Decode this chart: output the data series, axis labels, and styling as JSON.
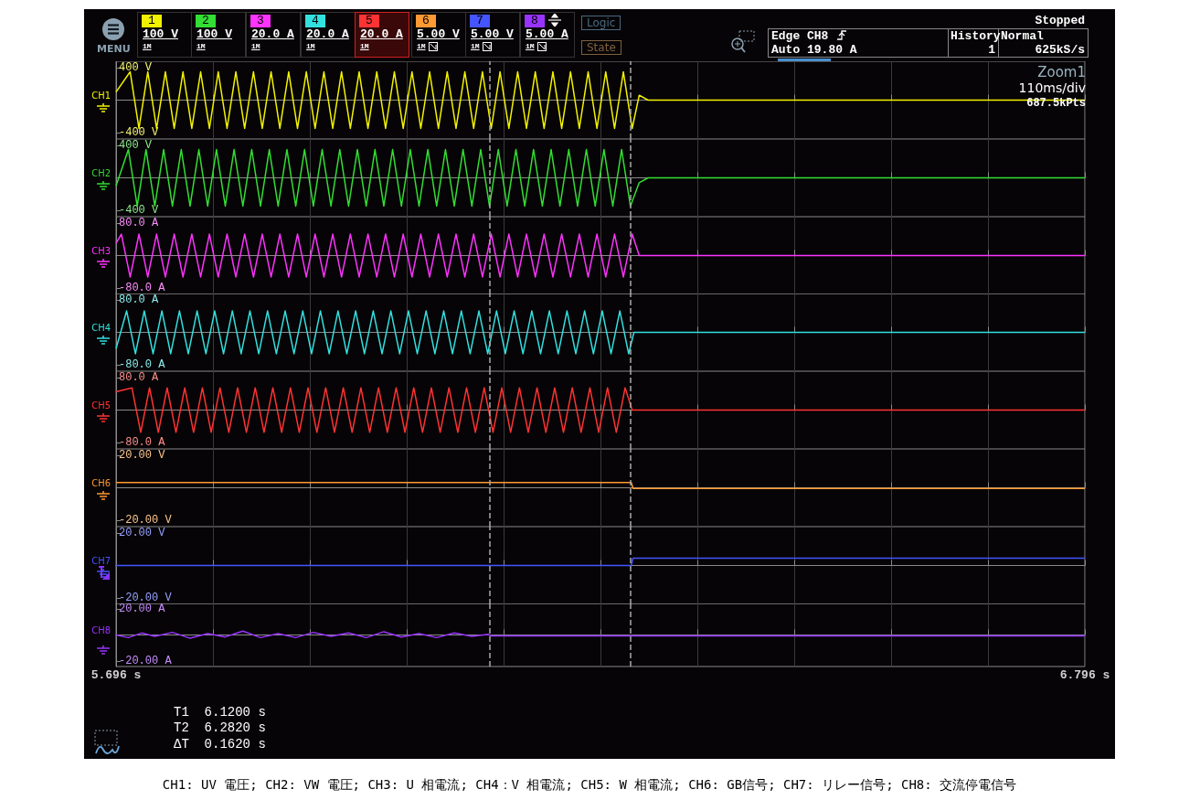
{
  "chart_data": [
    {
      "type": "line",
      "ylabel": "CH1",
      "color": "#f2f200",
      "marker": "none",
      "grid": "x",
      "tick_labels": "y",
      "xlim": [
        5.696,
        6.796
      ],
      "xticks": [
        5.696,
        5.806,
        5.916,
        6.026,
        6.136,
        6.246,
        6.356,
        6.466,
        6.576,
        6.686,
        6.796
      ],
      "ylim": [
        -480,
        480
      ],
      "yticks": [
        {
          "value": 400,
          "label": "400 V"
        },
        {
          "value": -400,
          "label": "-400 V"
        }
      ],
      "ref_lines": [
        {
          "axis": "x",
          "value": 6.12,
          "color": "#aaaaaa",
          "line_style": "dashed"
        },
        {
          "axis": "x",
          "value": 6.282,
          "color": "#aaaaaa",
          "line_style": "dashed"
        }
      ],
      "x": [
        5.696,
        5.712,
        5.722,
        5.732,
        5.742,
        5.752,
        5.762,
        5.772,
        5.782,
        5.792,
        5.802,
        5.812,
        5.822,
        5.832,
        5.842,
        5.852,
        5.862,
        5.872,
        5.882,
        5.892,
        5.902,
        5.912,
        5.922,
        5.932,
        5.942,
        5.952,
        5.962,
        5.972,
        5.982,
        5.992,
        6.002,
        6.012,
        6.022,
        6.032,
        6.042,
        6.052,
        6.062,
        6.072,
        6.082,
        6.092,
        6.102,
        6.112,
        6.122,
        6.132,
        6.142,
        6.152,
        6.162,
        6.172,
        6.182,
        6.192,
        6.202,
        6.212,
        6.222,
        6.232,
        6.242,
        6.252,
        6.262,
        6.272,
        6.282,
        6.29,
        6.3,
        6.796
      ],
      "values": [
        100,
        350,
        -350,
        350,
        -350,
        350,
        -350,
        350,
        -350,
        350,
        -350,
        350,
        -350,
        350,
        -350,
        350,
        -350,
        350,
        -350,
        350,
        -350,
        350,
        -350,
        350,
        -350,
        350,
        -350,
        350,
        -350,
        350,
        -350,
        350,
        -350,
        350,
        -350,
        350,
        -350,
        350,
        -350,
        350,
        -350,
        350,
        -350,
        350,
        -350,
        350,
        -350,
        350,
        -350,
        350,
        -350,
        350,
        -350,
        350,
        -350,
        350,
        -350,
        350,
        -350,
        60,
        0,
        0
      ],
      "annotations": [
        "MENU",
        "1",
        "100 V",
        "1M",
        "2",
        "100 V",
        "1M",
        "3",
        "20.0 A",
        "1M",
        "4",
        "20.0 A",
        "1M",
        "5",
        "20.0 A",
        "1M",
        "6",
        "5.00 V",
        "1M",
        "7",
        "5.00 V",
        "1M",
        "8",
        "5.00 A",
        "1M",
        "Logic",
        "State",
        "Edge CH8",
        "Auto 19.80 A",
        "History",
        "1",
        "Normal",
        "625kS/s",
        "Stopped",
        "Zoom1",
        "110ms/div",
        "687.5kPts"
      ]
    },
    {
      "type": "line",
      "ylabel": "CH2",
      "color": "#33dd33",
      "marker": "none",
      "grid": "x",
      "tick_labels": "y",
      "xlim": [
        5.696,
        6.796
      ],
      "xticks": [
        5.696,
        5.806,
        5.916,
        6.026,
        6.136,
        6.246,
        6.356,
        6.466,
        6.576,
        6.686,
        6.796
      ],
      "ylim": [
        -480,
        480
      ],
      "yticks": [
        {
          "value": 400,
          "label": "400 V"
        },
        {
          "value": -400,
          "label": "-400 V"
        }
      ],
      "ref_lines": [
        {
          "axis": "x",
          "value": 6.12,
          "color": "#aaaaaa",
          "line_style": "dashed"
        },
        {
          "axis": "x",
          "value": 6.282,
          "color": "#aaaaaa",
          "line_style": "dashed"
        }
      ],
      "x": [
        5.696,
        5.71,
        5.72,
        5.73,
        5.74,
        5.75,
        5.76,
        5.77,
        5.78,
        5.79,
        5.8,
        5.81,
        5.82,
        5.83,
        5.84,
        5.85,
        5.86,
        5.87,
        5.88,
        5.89,
        5.9,
        5.91,
        5.92,
        5.93,
        5.94,
        5.95,
        5.96,
        5.97,
        5.98,
        5.99,
        6.0,
        6.01,
        6.02,
        6.03,
        6.04,
        6.05,
        6.06,
        6.07,
        6.08,
        6.09,
        6.1,
        6.11,
        6.12,
        6.13,
        6.14,
        6.15,
        6.16,
        6.17,
        6.18,
        6.19,
        6.2,
        6.21,
        6.22,
        6.23,
        6.24,
        6.25,
        6.26,
        6.27,
        6.28,
        6.29,
        6.3,
        6.796
      ],
      "values": [
        -100,
        350,
        -350,
        350,
        -350,
        350,
        -350,
        350,
        -350,
        350,
        -350,
        350,
        -350,
        350,
        -350,
        350,
        -350,
        350,
        -350,
        350,
        -350,
        350,
        -350,
        350,
        -350,
        350,
        -350,
        350,
        -350,
        350,
        -350,
        350,
        -350,
        350,
        -350,
        350,
        -350,
        350,
        -350,
        350,
        -350,
        350,
        -350,
        350,
        -350,
        350,
        -350,
        350,
        -350,
        350,
        -350,
        350,
        -350,
        350,
        -350,
        350,
        -350,
        350,
        -350,
        -60,
        0,
        0
      ]
    },
    {
      "type": "line",
      "ylabel": "CH3",
      "color": "#ff33ff",
      "marker": "none",
      "grid": "x",
      "tick_labels": "y",
      "xlim": [
        5.696,
        6.796
      ],
      "xticks": [
        5.696,
        5.806,
        5.916,
        6.026,
        6.136,
        6.246,
        6.356,
        6.466,
        6.576,
        6.686,
        6.796
      ],
      "ylim": [
        -96,
        96
      ],
      "yticks": [
        {
          "value": 80,
          "label": "80.0 A"
        },
        {
          "value": -80,
          "label": "-80.0 A"
        }
      ],
      "ref_lines": [
        {
          "axis": "x",
          "value": 6.12,
          "color": "#aaaaaa",
          "line_style": "dashed"
        },
        {
          "axis": "x",
          "value": 6.282,
          "color": "#aaaaaa",
          "line_style": "dashed"
        }
      ],
      "x": [
        5.696,
        5.702,
        5.712,
        5.722,
        5.732,
        5.742,
        5.752,
        5.762,
        5.772,
        5.782,
        5.792,
        5.802,
        5.812,
        5.822,
        5.832,
        5.842,
        5.852,
        5.862,
        5.872,
        5.882,
        5.892,
        5.902,
        5.912,
        5.922,
        5.932,
        5.942,
        5.952,
        5.962,
        5.972,
        5.982,
        5.992,
        6.002,
        6.012,
        6.022,
        6.032,
        6.042,
        6.052,
        6.062,
        6.072,
        6.082,
        6.092,
        6.102,
        6.112,
        6.122,
        6.132,
        6.142,
        6.152,
        6.162,
        6.172,
        6.182,
        6.192,
        6.202,
        6.212,
        6.222,
        6.232,
        6.242,
        6.252,
        6.262,
        6.272,
        6.282,
        6.29,
        6.796
      ],
      "values": [
        30,
        53,
        -53,
        53,
        -53,
        53,
        -53,
        53,
        -53,
        53,
        -53,
        53,
        -53,
        53,
        -53,
        53,
        -53,
        53,
        -53,
        53,
        -53,
        53,
        -53,
        53,
        -53,
        53,
        -53,
        53,
        -53,
        53,
        -53,
        53,
        -53,
        53,
        -53,
        53,
        -53,
        53,
        -53,
        53,
        -53,
        53,
        -53,
        53,
        -53,
        53,
        -53,
        53,
        -53,
        53,
        -53,
        53,
        -53,
        53,
        -53,
        53,
        -53,
        53,
        -53,
        53,
        0,
        0
      ]
    },
    {
      "type": "line",
      "ylabel": "CH4",
      "color": "#33e0e0",
      "marker": "none",
      "grid": "x",
      "tick_labels": "y",
      "xlim": [
        5.696,
        6.796
      ],
      "xticks": [
        5.696,
        5.806,
        5.916,
        6.026,
        6.136,
        6.246,
        6.356,
        6.466,
        6.576,
        6.686,
        6.796
      ],
      "ylim": [
        -96,
        96
      ],
      "yticks": [
        {
          "value": 80,
          "label": "80.0 A"
        },
        {
          "value": -80,
          "label": "-80.0 A"
        }
      ],
      "ref_lines": [
        {
          "axis": "x",
          "value": 6.12,
          "color": "#aaaaaa",
          "line_style": "dashed"
        },
        {
          "axis": "x",
          "value": 6.282,
          "color": "#aaaaaa",
          "line_style": "dashed"
        }
      ],
      "x": [
        5.696,
        5.708,
        5.718,
        5.728,
        5.738,
        5.748,
        5.758,
        5.768,
        5.778,
        5.788,
        5.798,
        5.808,
        5.818,
        5.828,
        5.838,
        5.848,
        5.858,
        5.868,
        5.878,
        5.888,
        5.898,
        5.908,
        5.918,
        5.928,
        5.938,
        5.948,
        5.958,
        5.968,
        5.978,
        5.988,
        5.998,
        6.008,
        6.018,
        6.028,
        6.038,
        6.048,
        6.058,
        6.068,
        6.078,
        6.088,
        6.098,
        6.108,
        6.118,
        6.128,
        6.138,
        6.148,
        6.158,
        6.168,
        6.178,
        6.188,
        6.198,
        6.208,
        6.218,
        6.228,
        6.238,
        6.248,
        6.258,
        6.268,
        6.278,
        6.284,
        6.796
      ],
      "values": [
        -40,
        53,
        -53,
        53,
        -53,
        53,
        -53,
        53,
        -53,
        53,
        -53,
        53,
        -53,
        53,
        -53,
        53,
        -53,
        53,
        -53,
        53,
        -53,
        53,
        -53,
        53,
        -53,
        53,
        -53,
        53,
        -53,
        53,
        -53,
        53,
        -53,
        53,
        -53,
        53,
        -53,
        53,
        -53,
        53,
        -53,
        53,
        -53,
        53,
        -53,
        53,
        -53,
        53,
        -53,
        53,
        -53,
        53,
        -53,
        53,
        -53,
        53,
        -53,
        53,
        -53,
        0,
        0
      ]
    },
    {
      "type": "line",
      "ylabel": "CH5",
      "color": "#ff3333",
      "marker": "none",
      "grid": "x",
      "tick_labels": "y",
      "xlim": [
        5.696,
        6.796
      ],
      "xticks": [
        5.696,
        5.806,
        5.916,
        6.026,
        6.136,
        6.246,
        6.356,
        6.466,
        6.576,
        6.686,
        6.796
      ],
      "ylim": [
        -96,
        96
      ],
      "yticks": [
        {
          "value": 80,
          "label": "80.0 A"
        },
        {
          "value": -80,
          "label": "-80.0 A"
        }
      ],
      "ref_lines": [
        {
          "axis": "x",
          "value": 6.12,
          "color": "#aaaaaa",
          "line_style": "dashed"
        },
        {
          "axis": "x",
          "value": 6.282,
          "color": "#aaaaaa",
          "line_style": "dashed"
        }
      ],
      "x": [
        5.696,
        5.714,
        5.724,
        5.734,
        5.744,
        5.754,
        5.764,
        5.774,
        5.784,
        5.794,
        5.804,
        5.814,
        5.824,
        5.834,
        5.844,
        5.854,
        5.864,
        5.874,
        5.884,
        5.894,
        5.904,
        5.914,
        5.924,
        5.934,
        5.944,
        5.954,
        5.964,
        5.974,
        5.984,
        5.994,
        6.004,
        6.014,
        6.024,
        6.034,
        6.044,
        6.054,
        6.064,
        6.074,
        6.084,
        6.094,
        6.104,
        6.114,
        6.124,
        6.134,
        6.144,
        6.154,
        6.164,
        6.174,
        6.184,
        6.194,
        6.204,
        6.214,
        6.224,
        6.234,
        6.244,
        6.254,
        6.264,
        6.274,
        6.282,
        6.796
      ],
      "values": [
        45,
        55,
        -55,
        55,
        -55,
        55,
        -55,
        55,
        -55,
        55,
        -55,
        55,
        -55,
        55,
        -55,
        55,
        -55,
        55,
        -55,
        55,
        -55,
        55,
        -55,
        55,
        -55,
        55,
        -55,
        55,
        -55,
        55,
        -55,
        55,
        -55,
        55,
        -55,
        55,
        -55,
        55,
        -55,
        55,
        -55,
        55,
        -55,
        55,
        -55,
        55,
        -55,
        55,
        -55,
        55,
        -55,
        55,
        -55,
        55,
        -55,
        55,
        -55,
        55,
        0,
        0
      ]
    },
    {
      "type": "line",
      "ylabel": "CH6",
      "color": "#ff9933",
      "marker": "none",
      "grid": "x",
      "tick_labels": "y",
      "xlim": [
        5.696,
        6.796
      ],
      "xticks": [
        5.696,
        5.806,
        5.916,
        6.026,
        6.136,
        6.246,
        6.356,
        6.466,
        6.576,
        6.686,
        6.796
      ],
      "ylim": [
        -24,
        24
      ],
      "yticks": [
        {
          "value": 20,
          "label": "20.00 V"
        },
        {
          "value": -20,
          "label": "-20.00 V"
        }
      ],
      "ref_lines": [
        {
          "axis": "x",
          "value": 6.12,
          "color": "#aaaaaa",
          "line_style": "dashed"
        },
        {
          "axis": "x",
          "value": 6.282,
          "color": "#aaaaaa",
          "line_style": "dashed"
        }
      ],
      "x": [
        5.696,
        6.281,
        6.283,
        6.796
      ],
      "values": [
        3.2,
        3.2,
        -0.4,
        -0.4
      ]
    },
    {
      "type": "line",
      "ylabel": "CH7",
      "color": "#4455ff",
      "marker": "none",
      "grid": "x",
      "tick_labels": "y",
      "xlim": [
        5.696,
        6.796
      ],
      "xticks": [
        5.696,
        5.806,
        5.916,
        6.026,
        6.136,
        6.246,
        6.356,
        6.466,
        6.576,
        6.686,
        6.796
      ],
      "ylim": [
        -24,
        24
      ],
      "yticks": [
        {
          "value": 20,
          "label": "20.00 V"
        },
        {
          "value": -20,
          "label": "-20.00 V"
        }
      ],
      "ref_lines": [
        {
          "axis": "x",
          "value": 6.12,
          "color": "#aaaaaa",
          "line_style": "dashed"
        },
        {
          "axis": "x",
          "value": 6.282,
          "color": "#aaaaaa",
          "line_style": "dashed"
        }
      ],
      "x": [
        5.696,
        6.281,
        6.283,
        6.796
      ],
      "values": [
        0,
        0,
        4.5,
        4.5
      ]
    },
    {
      "type": "line",
      "ylabel": "CH8",
      "color": "#9933ff",
      "marker": "none",
      "grid": "x",
      "xlim": [
        5.696,
        6.796
      ],
      "xticks": [
        {
          "value": 5.696,
          "label": "5.696 s"
        },
        {
          "value": 5.806,
          "label": null
        },
        {
          "value": 5.916,
          "label": null
        },
        {
          "value": 6.026,
          "label": null
        },
        {
          "value": 6.136,
          "label": null
        },
        {
          "value": 6.246,
          "label": null
        },
        {
          "value": 6.356,
          "label": null
        },
        {
          "value": 6.466,
          "label": null
        },
        {
          "value": 6.576,
          "label": null
        },
        {
          "value": 6.686,
          "label": null
        },
        {
          "value": 6.796,
          "label": "6.796 s"
        }
      ],
      "ylim": [
        -24,
        24
      ],
      "yticks": [
        {
          "value": 20,
          "label": "20.00 A"
        },
        {
          "value": -20,
          "label": "-20.00 A"
        }
      ],
      "ref_lines": [
        {
          "axis": "x",
          "value": 6.12,
          "color": "#aaaaaa",
          "line_style": "dashed"
        },
        {
          "axis": "x",
          "value": 6.282,
          "color": "#aaaaaa",
          "line_style": "dashed"
        }
      ],
      "x": [
        5.696,
        5.71,
        5.725,
        5.74,
        5.76,
        5.78,
        5.8,
        5.82,
        5.84,
        5.86,
        5.88,
        5.9,
        5.92,
        5.94,
        5.96,
        5.98,
        6.0,
        6.02,
        6.04,
        6.06,
        6.08,
        6.1,
        6.119,
        6.121,
        6.796
      ],
      "values": [
        0,
        -2,
        1.5,
        -1,
        2,
        -2.5,
        1,
        -1.5,
        3,
        -2,
        1,
        -2,
        2,
        -1,
        1.5,
        -2,
        2.5,
        -1.5,
        1,
        -2,
        1.5,
        -1,
        0.5,
        -0.7,
        -0.7
      ],
      "annotations": [
        "T1  6.1200 s",
        "T2  6.2820 s",
        "ΔT  0.1620 s",
        "CH1: UV 電圧; CH2: VW 電圧; CH3: U 相電流; CH4：V 相電流; CH5: W 相電流; CH6: GB信号; CH7: リレー信号; CH8: 交流停電信号"
      ]
    }
  ]
}
